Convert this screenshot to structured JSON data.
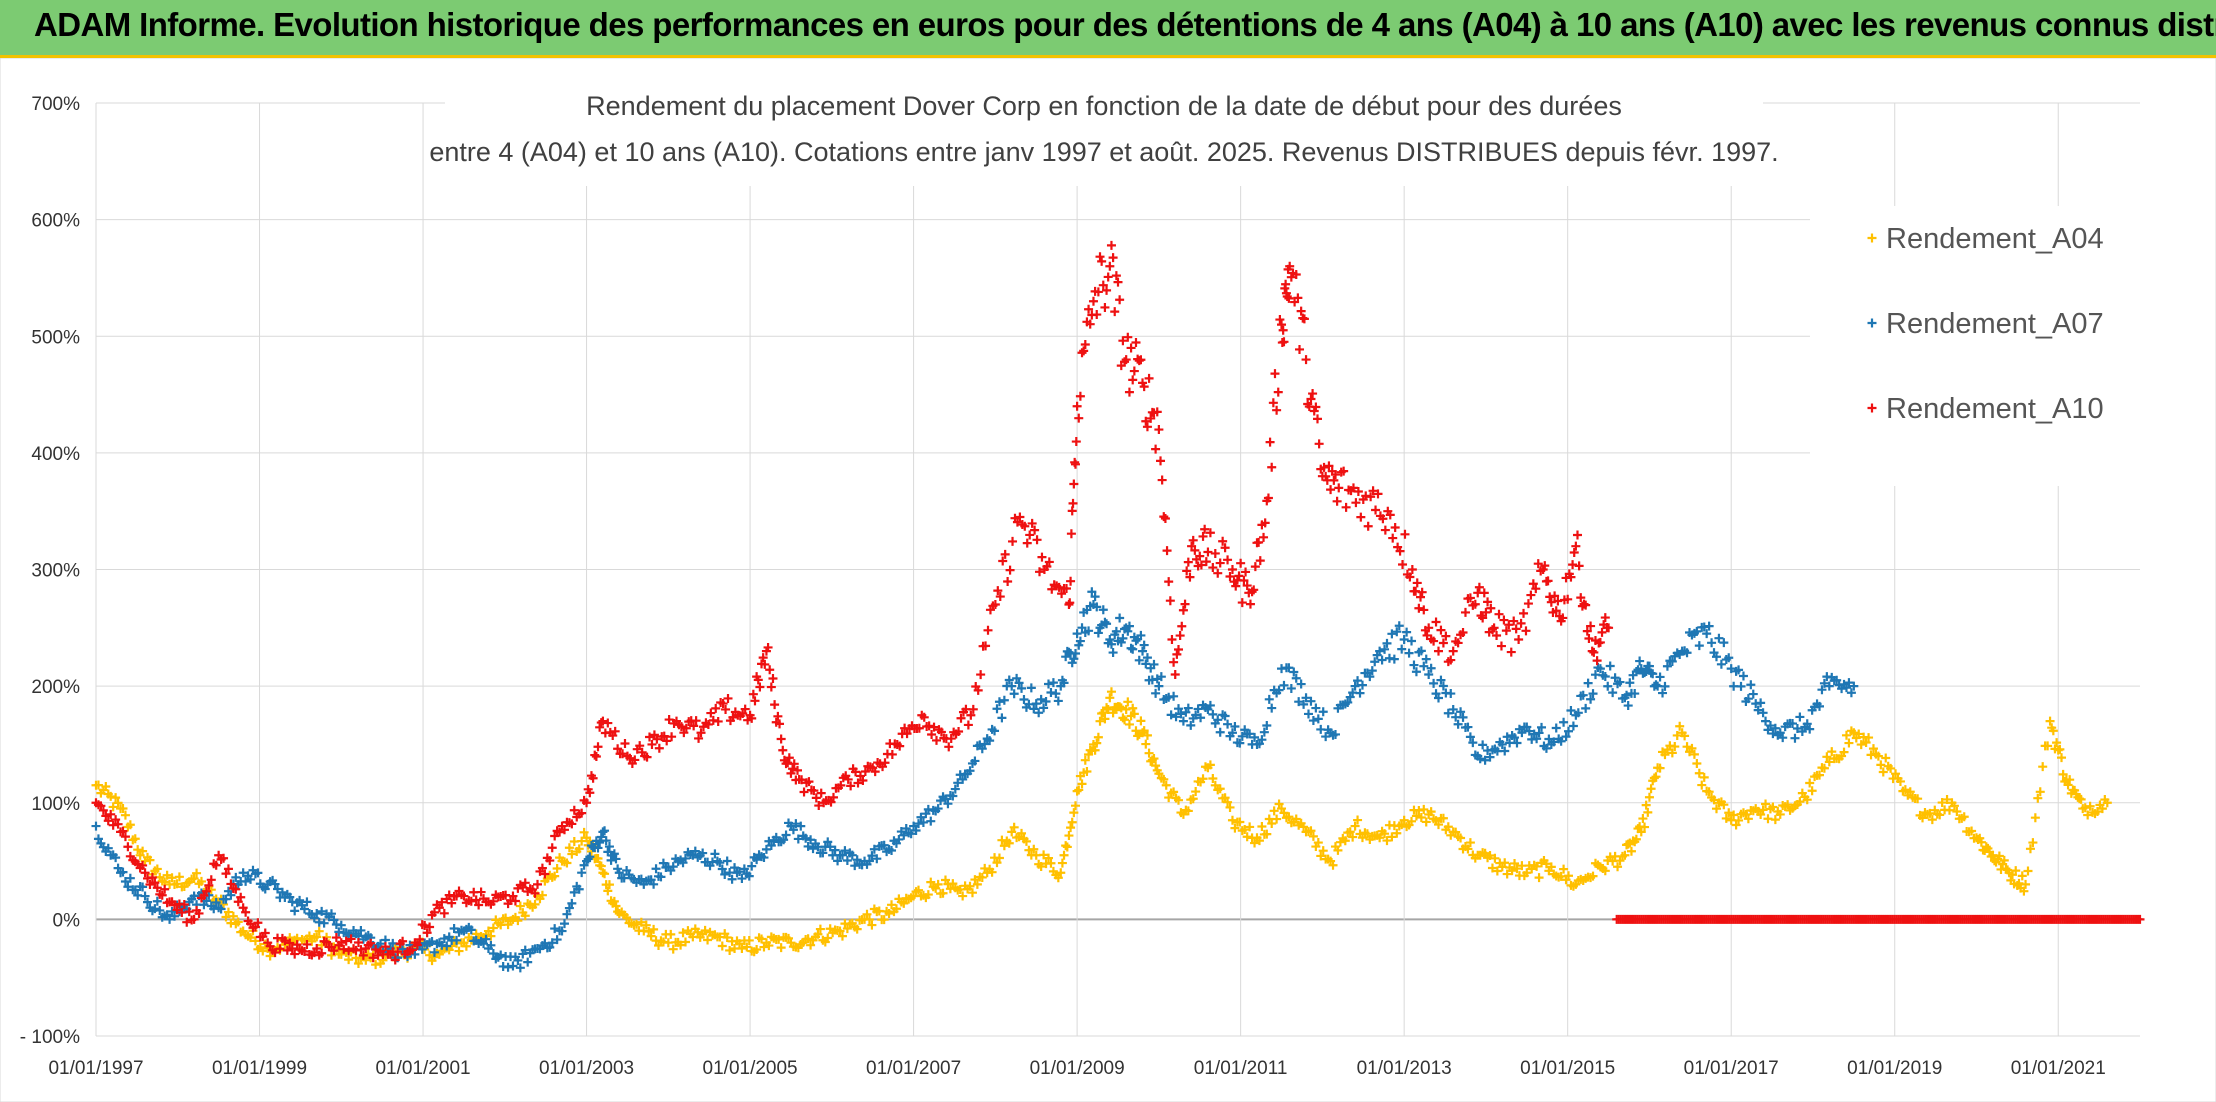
{
  "banner": {
    "title": "ADAM Informe. Evolution historique des performances en euros pour des détentions de 4 ans (A04) à 10 ans (A10) avec les revenus connus distribués"
  },
  "chart_data": {
    "type": "scatter",
    "title_line1": "Rendement du placement Dover Corp en fonction de la date de début pour des durées",
    "title_line2": "entre 4 (A04) et 10 ans (A10). Cotations entre janv 1997 et août. 2025. Revenus DISTRIBUES depuis févr. 1997.",
    "xlim": [
      1997.0,
      2022.0
    ],
    "ylim": [
      -100,
      700
    ],
    "x_tick_labels": [
      "01/01/1997",
      "01/01/1999",
      "01/01/2001",
      "01/01/2003",
      "01/01/2005",
      "01/01/2007",
      "01/01/2009",
      "01/01/2011",
      "01/01/2013",
      "01/01/2015",
      "01/01/2017",
      "01/01/2019",
      "01/01/2021"
    ],
    "x_tick_values": [
      1997,
      1999,
      2001,
      2003,
      2005,
      2007,
      2009,
      2011,
      2013,
      2015,
      2017,
      2019,
      2021
    ],
    "y_tick_labels": [
      "- 100%",
      "0%",
      "100%",
      "200%",
      "300%",
      "400%",
      "500%",
      "600%",
      "700%"
    ],
    "y_tick_values": [
      -100,
      0,
      100,
      200,
      300,
      400,
      500,
      600,
      700
    ],
    "grid": true,
    "marker": "+",
    "legend_position": "top-right",
    "series": [
      {
        "name": "Rendement_A04",
        "color": "#ffc000",
        "x": [
          1997.0,
          1997.3,
          1997.6,
          1997.9,
          1998.2,
          1998.5,
          1998.8,
          1999.1,
          1999.4,
          1999.7,
          2000.0,
          2000.3,
          2000.6,
          2000.9,
          2001.2,
          2001.5,
          2001.8,
          2002.1,
          2002.4,
          2002.7,
          2003.0,
          2003.2,
          2003.4,
          2003.7,
          2004.0,
          2004.3,
          2004.6,
          2004.9,
          2005.2,
          2005.5,
          2005.8,
          2006.1,
          2006.4,
          2006.7,
          2007.0,
          2007.3,
          2007.6,
          2007.9,
          2008.2,
          2008.5,
          2008.8,
          2009.0,
          2009.2,
          2009.4,
          2009.6,
          2009.8,
          2010.0,
          2010.3,
          2010.6,
          2010.9,
          2011.2,
          2011.5,
          2011.8,
          2012.1,
          2012.4,
          2012.7,
          2013.0,
          2013.3,
          2013.6,
          2013.9,
          2014.2,
          2014.5,
          2014.8,
          2015.1,
          2015.4,
          2015.7,
          2015.9,
          2016.1,
          2016.4,
          2016.7,
          2017.0,
          2017.3,
          2017.6,
          2017.9,
          2018.2,
          2018.5,
          2018.8,
          2019.1,
          2019.4,
          2019.7,
          2020.0,
          2020.2,
          2020.4,
          2020.6,
          2020.9,
          2021.1,
          2021.3,
          2021.6
        ],
        "y": [
          115,
          95,
          50,
          30,
          35,
          15,
          -10,
          -25,
          -20,
          -15,
          -30,
          -35,
          -30,
          -25,
          -30,
          -20,
          -10,
          0,
          20,
          50,
          70,
          40,
          5,
          -10,
          -20,
          -15,
          -15,
          -25,
          -20,
          -20,
          -15,
          -10,
          0,
          5,
          20,
          30,
          20,
          40,
          75,
          55,
          40,
          110,
          150,
          190,
          180,
          160,
          125,
          90,
          130,
          85,
          70,
          95,
          75,
          50,
          80,
          70,
          85,
          90,
          75,
          55,
          45,
          40,
          45,
          30,
          45,
          55,
          75,
          130,
          160,
          110,
          85,
          95,
          90,
          105,
          135,
          160,
          140,
          110,
          90,
          100,
          70,
          55,
          40,
          30,
          170,
          120,
          95,
          100
        ]
      },
      {
        "name": "Rendement_A07",
        "color": "#1f77b4",
        "x": [
          1997.0,
          1997.3,
          1997.6,
          1997.9,
          1998.2,
          1998.5,
          1998.8,
          1999.1,
          1999.4,
          1999.7,
          2000.0,
          2000.3,
          2000.6,
          2000.9,
          2001.2,
          2001.5,
          2001.8,
          2002.1,
          2002.4,
          2002.7,
          2003.0,
          2003.2,
          2003.4,
          2003.7,
          2004.0,
          2004.3,
          2004.6,
          2004.9,
          2005.2,
          2005.5,
          2005.8,
          2006.1,
          2006.4,
          2006.7,
          2007.0,
          2007.3,
          2007.6,
          2007.9,
          2008.2,
          2008.5,
          2008.8,
          2009.0,
          2009.2,
          2009.4,
          2009.6,
          2009.8,
          2010.0,
          2010.3,
          2010.6,
          2010.9,
          2011.2,
          2011.5,
          2011.8,
          2012.1,
          2012.4,
          2012.7,
          2013.0,
          2013.3,
          2013.6,
          2013.9,
          2014.2,
          2014.5,
          2014.8,
          2015.1,
          2015.4,
          2015.7,
          2015.9,
          2016.1,
          2016.4,
          2016.7,
          2017.0,
          2017.3,
          2017.6,
          2017.9,
          2018.2,
          2018.5
        ],
        "y": [
          80,
          40,
          20,
          0,
          20,
          10,
          40,
          30,
          15,
          5,
          -5,
          -15,
          -25,
          -30,
          -20,
          -10,
          -25,
          -40,
          -25,
          -10,
          50,
          75,
          40,
          30,
          45,
          55,
          50,
          35,
          60,
          80,
          65,
          55,
          50,
          60,
          80,
          95,
          120,
          155,
          200,
          185,
          200,
          245,
          270,
          240,
          250,
          230,
          200,
          170,
          180,
          160,
          150,
          215,
          190,
          160,
          200,
          230,
          240,
          210,
          180,
          140,
          150,
          165,
          150,
          175,
          215,
          190,
          215,
          200,
          230,
          245,
          215,
          185,
          160,
          165,
          200,
          200
        ]
      },
      {
        "name": "Rendement_A10",
        "color": "#ee1111",
        "x": [
          1997.0,
          1997.3,
          1997.6,
          1997.9,
          1998.2,
          1998.5,
          1998.8,
          1999.1,
          1999.4,
          1999.7,
          2000.0,
          2000.3,
          2000.6,
          2000.9,
          2001.2,
          2001.5,
          2001.8,
          2002.1,
          2002.4,
          2002.7,
          2003.0,
          2003.2,
          2003.5,
          2003.8,
          2004.1,
          2004.4,
          2004.7,
          2005.0,
          2005.2,
          2005.4,
          2005.6,
          2005.9,
          2006.2,
          2006.5,
          2006.8,
          2007.1,
          2007.4,
          2007.7,
          2008.0,
          2008.3,
          2008.6,
          2008.9,
          2009.0,
          2009.2,
          2009.4,
          2009.6,
          2009.8,
          2010.0,
          2010.2,
          2010.4,
          2010.6,
          2010.9,
          2011.1,
          2011.3,
          2011.5,
          2011.6,
          2011.8,
          2012.0,
          2012.2,
          2012.5,
          2012.8,
          2013.1,
          2013.3,
          2013.6,
          2013.9,
          2014.1,
          2014.4,
          2014.7,
          2014.9,
          2015.1,
          2015.3,
          2015.5
        ],
        "y": [
          100,
          75,
          40,
          15,
          0,
          55,
          10,
          -20,
          -25,
          -25,
          -20,
          -25,
          -30,
          -20,
          10,
          20,
          15,
          20,
          30,
          80,
          100,
          170,
          140,
          150,
          170,
          160,
          180,
          175,
          230,
          145,
          120,
          100,
          120,
          130,
          150,
          175,
          155,
          175,
          270,
          345,
          300,
          270,
          440,
          530,
          560,
          480,
          460,
          420,
          210,
          320,
          315,
          300,
          280,
          340,
          510,
          560,
          480,
          380,
          370,
          360,
          350,
          300,
          250,
          230,
          280,
          250,
          240,
          300,
          260,
          320,
          230,
          250
        ]
      },
      {
        "name": "",
        "color": "#ee1111",
        "x": [
          2015.6,
          2015.8,
          2016.0,
          2016.2,
          2016.4,
          2016.6,
          2016.8,
          2017.0,
          2017.2,
          2017.4,
          2017.6,
          2017.8,
          2018.0,
          2018.2,
          2018.4,
          2018.6,
          2018.8,
          2019.0,
          2019.2,
          2019.4,
          2019.6,
          2019.8,
          2020.0,
          2020.2,
          2020.4,
          2020.6,
          2020.8,
          2021.0,
          2021.2,
          2021.4,
          2021.6,
          2021.8,
          2022.0
        ],
        "y": [
          0,
          0,
          0,
          0,
          0,
          0,
          0,
          0,
          0,
          0,
          0,
          0,
          0,
          0,
          0,
          0,
          0,
          0,
          0,
          0,
          0,
          0,
          0,
          0,
          0,
          0,
          0,
          0,
          0,
          0,
          0,
          0,
          0
        ]
      }
    ]
  }
}
